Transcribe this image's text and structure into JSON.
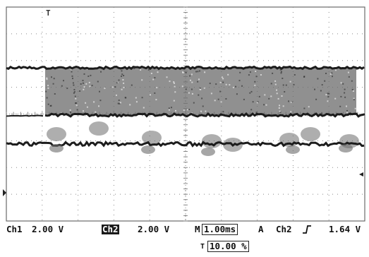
{
  "colors": {
    "trace": "#1c1c1c",
    "noise": "#6b6b6b",
    "grid": "#8a8a8a",
    "background": "#ffffff"
  },
  "markers": {
    "trigger_position_icon": "T-marker-icon",
    "trigger_level_icon": "left-arrow-icon",
    "ch1_ground_icon": "ground-marker-icon"
  },
  "status_bar": {
    "ch1_label": "Ch1",
    "ch1_scale": "2.00 V",
    "ch2_label": "Ch2",
    "ch2_scale": "2.00 V",
    "timebase_prefix": "M",
    "timebase": "1.00ms",
    "trigger_mode": "A",
    "trigger_source": "Ch2",
    "trigger_slope_icon": "rising-edge-icon",
    "trigger_level": "1.64 V"
  },
  "footer": {
    "icon": "T-marker-icon",
    "percent": "10.00 %"
  }
}
